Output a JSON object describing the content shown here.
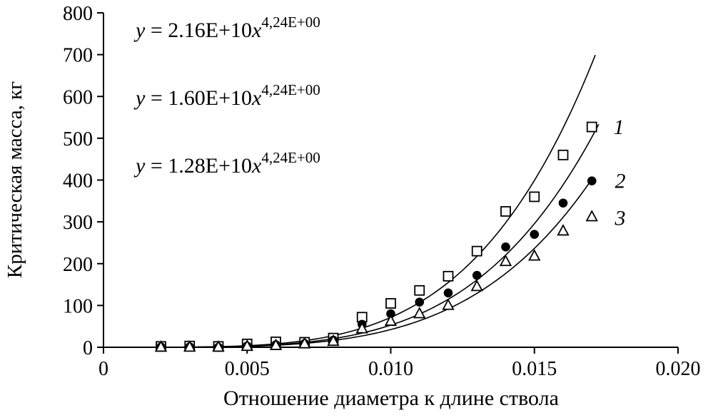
{
  "figure": {
    "background": "#ffffff",
    "stroke_color": "#000000"
  },
  "chart_data": {
    "type": "scatter",
    "title": "",
    "xlabel": "Отношение диаметра к длине ствола",
    "ylabel": "Критическая масса, кг",
    "xlim": [
      0,
      0.02
    ],
    "ylim": [
      0,
      800
    ],
    "grid": false,
    "legend_position": "inline-right-labels",
    "xticks": [
      {
        "v": 0,
        "label": "0"
      },
      {
        "v": 0.005,
        "label": "0.005"
      },
      {
        "v": 0.01,
        "label": "0.010"
      },
      {
        "v": 0.015,
        "label": "0.015"
      },
      {
        "v": 0.02,
        "label": "0.020"
      }
    ],
    "yticks": [
      {
        "v": 0,
        "label": "0"
      },
      {
        "v": 100,
        "label": "100"
      },
      {
        "v": 200,
        "label": "200"
      },
      {
        "v": 300,
        "label": "300"
      },
      {
        "v": 400,
        "label": "400"
      },
      {
        "v": 500,
        "label": "500"
      },
      {
        "v": 600,
        "label": "600"
      },
      {
        "v": 700,
        "label": "700"
      },
      {
        "v": 800,
        "label": "800"
      }
    ],
    "equations": [
      {
        "lhs": "y",
        "mid": " = 2.16E+10",
        "base": "x",
        "exponent": "4,24E+00"
      },
      {
        "lhs": "y",
        "mid": " = 1.60E+10",
        "base": "x",
        "exponent": "4,24E+00"
      },
      {
        "lhs": "y",
        "mid": " = 1.28E+10",
        "base": "x",
        "exponent": "4,24E+00"
      }
    ],
    "series": [
      {
        "name": "1",
        "marker": "open-square",
        "x": [
          0.002,
          0.003,
          0.004,
          0.005,
          0.006,
          0.007,
          0.008,
          0.009,
          0.01,
          0.011,
          0.012,
          0.013,
          0.014,
          0.015,
          0.016,
          0.017
        ],
        "y": [
          2,
          3,
          2,
          8,
          13,
          12,
          22,
          72,
          105,
          136,
          170,
          230,
          325,
          360,
          460,
          527
        ],
        "fit": {
          "a": 21600000000.0,
          "b": 4.24,
          "x_start": 0.002,
          "x_end": 0.01715
        },
        "label_pos": {
          "x": 0.01775,
          "y": 527
        }
      },
      {
        "name": "2",
        "marker": "filled-circle",
        "x": [
          0.002,
          0.003,
          0.004,
          0.005,
          0.006,
          0.007,
          0.008,
          0.009,
          0.01,
          0.011,
          0.012,
          0.013,
          0.014,
          0.015,
          0.016,
          0.017
        ],
        "y": [
          1,
          1,
          0,
          3,
          6,
          9,
          17,
          55,
          80,
          108,
          130,
          172,
          240,
          270,
          345,
          398
        ],
        "fit": {
          "a": 16000000000.0,
          "b": 4.24,
          "x_start": 0.002,
          "x_end": 0.01725
        },
        "label_pos": {
          "x": 0.0178,
          "y": 398
        }
      },
      {
        "name": "3",
        "marker": "open-triangle",
        "x": [
          0.002,
          0.003,
          0.004,
          0.005,
          0.006,
          0.007,
          0.008,
          0.009,
          0.01,
          0.011,
          0.012,
          0.013,
          0.014,
          0.015,
          0.016,
          0.017
        ],
        "y": [
          0,
          0,
          0,
          2,
          4,
          8,
          14,
          44,
          62,
          80,
          100,
          145,
          205,
          218,
          278,
          312
        ],
        "fit": {
          "a": 12800000000.0,
          "b": 4.24,
          "x_start": 0.002,
          "x_end": 0.017
        },
        "label_pos": {
          "x": 0.0178,
          "y": 310
        }
      }
    ]
  }
}
